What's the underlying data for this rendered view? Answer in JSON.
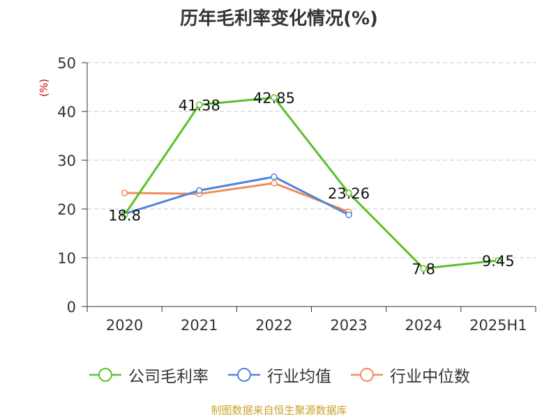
{
  "chart_data": {
    "type": "line",
    "title": "历年毛利率变化情况(%)",
    "ylabel": "(%)",
    "xlabel": "",
    "categories": [
      "2020",
      "2021",
      "2022",
      "2023",
      "2024",
      "2025H1"
    ],
    "ylim": [
      0,
      50
    ],
    "yticks": [
      0,
      10,
      20,
      30,
      40,
      50
    ],
    "grid": true,
    "legend_position": "bottom",
    "series": [
      {
        "name": "公司毛利率",
        "color": "#5bc12a",
        "values": [
          18.8,
          41.38,
          42.85,
          23.26,
          7.8,
          9.45
        ],
        "labels": [
          "18.8",
          "41.38",
          "42.85",
          "23.26",
          "7.8",
          "9.45"
        ],
        "show_labels": true
      },
      {
        "name": "行业均值",
        "color": "#5282d8",
        "values": [
          19.0,
          23.8,
          26.6,
          18.8,
          null,
          null
        ],
        "show_labels": false
      },
      {
        "name": "行业中位数",
        "color": "#f08c5a",
        "values": [
          23.3,
          23.1,
          25.3,
          19.4,
          null,
          null
        ],
        "show_labels": false
      }
    ]
  },
  "source_note": "制图数据来自恒生聚源数据库",
  "colors": {
    "grid": "#c8c8c8",
    "axis": "#333333",
    "ylabel": "#d40000",
    "source": "#c9a227"
  }
}
